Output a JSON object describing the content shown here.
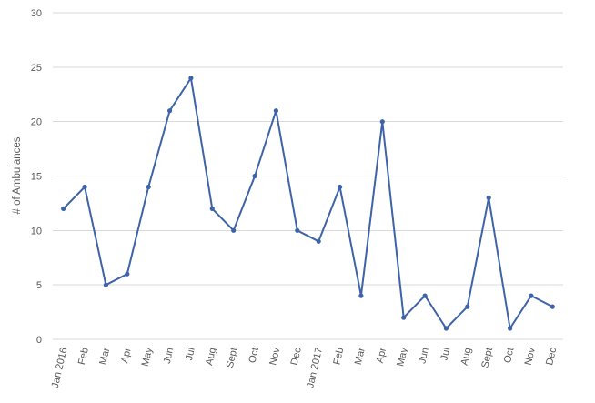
{
  "chart_data": {
    "type": "line",
    "title": "",
    "xlabel": "",
    "ylabel": "# of Ambulances",
    "categories": [
      "Jan 2016",
      "Feb",
      "Mar",
      "Apr",
      "May",
      "Jun",
      "Jul",
      "Aug",
      "Sept",
      "Oct",
      "Nov",
      "Dec",
      "Jan 2017",
      "Feb",
      "Mar",
      "Apr",
      "May",
      "Jun",
      "Jul",
      "Aug",
      "Sept",
      "Oct",
      "Nov",
      "Dec"
    ],
    "series": [
      {
        "name": "# of Ambulances",
        "values": [
          12,
          14,
          5,
          6,
          14,
          21,
          24,
          12,
          10,
          15,
          21,
          10,
          9,
          14,
          4,
          20,
          2,
          4,
          1,
          3,
          13,
          1,
          4,
          3
        ]
      }
    ],
    "ylim": [
      0,
      30
    ],
    "yticks": [
      0,
      5,
      10,
      15,
      20,
      25,
      30
    ],
    "grid": true,
    "legend": false,
    "x_label_rotation_deg": -77,
    "colors": {
      "line": "#3e63a8",
      "gridline": "#d9d9d9",
      "tick_text": "#595959",
      "background": "#ffffff"
    }
  }
}
